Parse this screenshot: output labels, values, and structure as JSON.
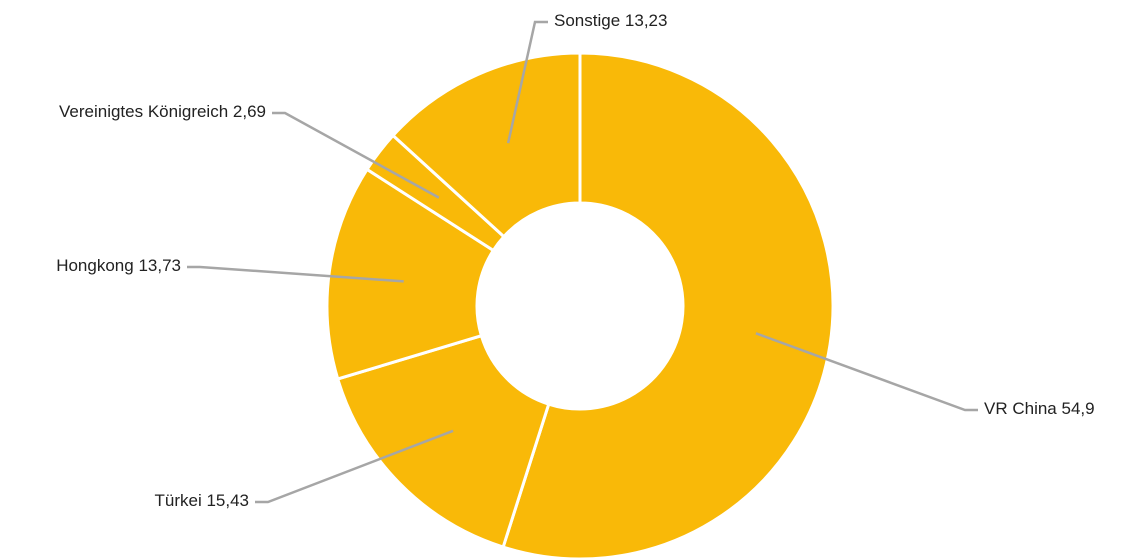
{
  "chart_data": {
    "type": "donut",
    "categories": [
      "VR China",
      "Türkei",
      "Hongkong",
      "Vereinigtes Königreich",
      "Sonstige"
    ],
    "values": [
      54.9,
      15.43,
      13.73,
      2.69,
      13.23
    ],
    "value_labels": [
      "54,9",
      "15,43",
      "13,73",
      "2,69",
      "13,23"
    ],
    "color": "#f9b908"
  }
}
